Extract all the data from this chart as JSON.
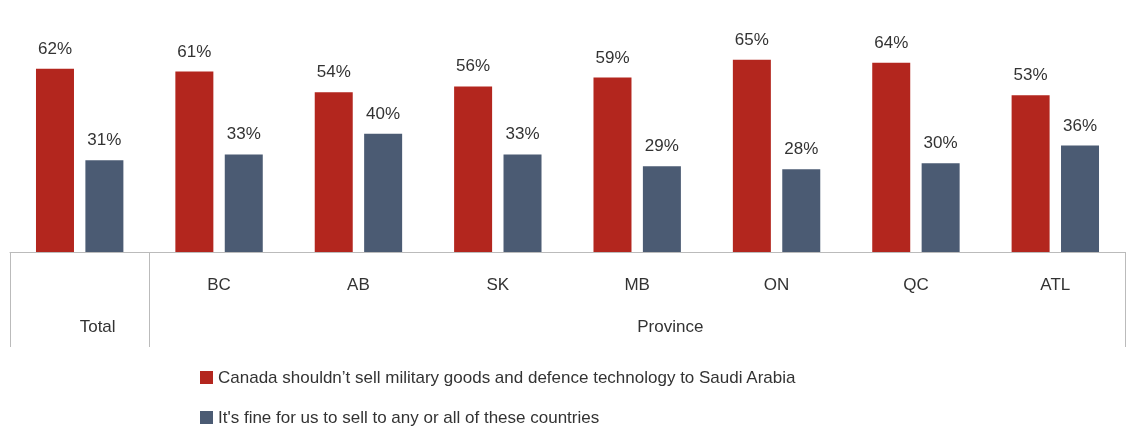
{
  "chart_data": {
    "type": "bar",
    "categories": [
      null,
      "BC",
      "AB",
      "SK",
      "MB",
      "ON",
      "QC",
      "ATL"
    ],
    "series": [
      {
        "name": "Canada shouldn’t sell military goods and defence technology to Saudi Arabia",
        "color": "#b3261e",
        "values": [
          62,
          61,
          54,
          56,
          59,
          65,
          64,
          53
        ],
        "value_labels": [
          "62%",
          "61%",
          "54%",
          "56%",
          "59%",
          "65%",
          "64%",
          "53%"
        ]
      },
      {
        "name": "It's fine for us to sell to any or all of these countries",
        "color": "#4b5b73",
        "values": [
          31,
          33,
          40,
          33,
          29,
          28,
          30,
          36
        ],
        "value_labels": [
          "31%",
          "33%",
          "40%",
          "33%",
          "29%",
          "28%",
          "30%",
          "36%"
        ]
      }
    ],
    "annotations": [
      "Total",
      "Province"
    ],
    "legend": "bottom",
    "grid": false
  }
}
